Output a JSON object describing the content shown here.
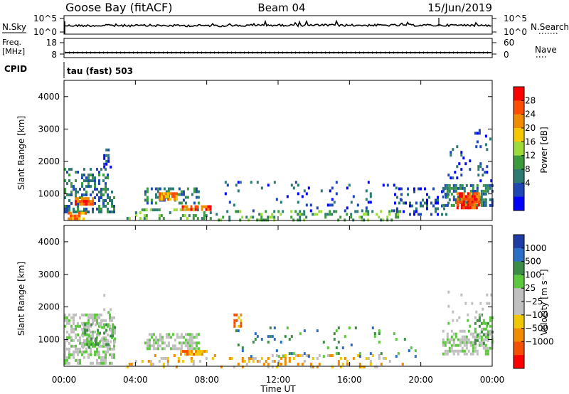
{
  "header": {
    "station": "Goose Bay (fitACF)",
    "beam": "Beam 04",
    "date": "15/Jun/2019"
  },
  "top_panels": {
    "nsky_label": "N.Sky",
    "nsky_ticks": [
      "10^5",
      "10^0"
    ],
    "nsearch_label": "N.Search",
    "nsearch_ticks": [
      "10^5",
      "10^0"
    ],
    "freq_label_1": "Freq.",
    "freq_label_2": "[MHz]",
    "freq_ticks": [
      "18",
      "8"
    ],
    "nave_label": "Nave",
    "nave_ticks": [
      "60",
      "0"
    ],
    "cpid_label": "CPID",
    "cpid_value": "tau (fast) 503"
  },
  "colorbars": {
    "power": {
      "label": "Power [dB]",
      "ticks": [
        "28",
        "24",
        "20",
        "16",
        "12",
        "8",
        "4"
      ],
      "colors": [
        "#ff0000",
        "#ff4d00",
        "#f08c00",
        "#f5c800",
        "#9ddb3a",
        "#3c9a3c",
        "#2d7a72",
        "#1e46b4",
        "#0000ff"
      ]
    },
    "velocity": {
      "label": "Velocity [m s⁻¹]",
      "ticks": [
        "1000",
        "500",
        "100",
        "25",
        "−25",
        "−100",
        "−500",
        "−1000"
      ],
      "colors": [
        "#1f3ca6",
        "#2a6ec8",
        "#3c8c46",
        "#5cc83c",
        "#c0c0c0",
        "#c0c0c0",
        "#f0c800",
        "#f08c00",
        "#f55000",
        "#ff0000"
      ]
    }
  },
  "chart_data": [
    {
      "type": "heatmap",
      "panel": "power",
      "ylabel": "Slant Range [km]",
      "y_ticks": [
        "4000",
        "3000",
        "2000",
        "1000"
      ],
      "ylim": [
        180,
        4500
      ],
      "xlim": [
        0,
        24
      ],
      "x_ticks": [
        "00:00",
        "04:00",
        "08:00",
        "12:00",
        "16:00",
        "20:00",
        "00:00"
      ],
      "colorbar": "power",
      "clusters": [
        {
          "t0": 0.0,
          "t1": 2.5,
          "r0": 1100,
          "r1": 1800,
          "density": 0.35,
          "level": 2
        },
        {
          "t0": 0.0,
          "t1": 2.8,
          "r0": 400,
          "r1": 1100,
          "density": 0.5,
          "level": 2
        },
        {
          "t0": 0.6,
          "t1": 1.6,
          "r0": 650,
          "r1": 900,
          "density": 0.85,
          "level": 7
        },
        {
          "t0": 0.2,
          "t1": 1.2,
          "r0": 250,
          "r1": 450,
          "density": 0.7,
          "level": 6
        },
        {
          "t0": 2.2,
          "t1": 2.6,
          "r0": 1800,
          "r1": 2400,
          "density": 0.35,
          "level": 1
        },
        {
          "t0": 4.5,
          "t1": 7.5,
          "r0": 750,
          "r1": 1200,
          "density": 0.4,
          "level": 2
        },
        {
          "t0": 5.3,
          "t1": 6.3,
          "r0": 850,
          "r1": 1050,
          "density": 0.8,
          "level": 6
        },
        {
          "t0": 6.6,
          "t1": 8.2,
          "r0": 480,
          "r1": 650,
          "density": 0.85,
          "level": 7
        },
        {
          "t0": 3.5,
          "t1": 8.5,
          "r0": 200,
          "r1": 550,
          "density": 0.25,
          "level": 3
        },
        {
          "t0": 8.5,
          "t1": 19.0,
          "r0": 200,
          "r1": 500,
          "density": 0.3,
          "level": 3
        },
        {
          "t0": 9.0,
          "t1": 19.0,
          "r0": 500,
          "r1": 1400,
          "density": 0.08,
          "level": 1
        },
        {
          "t0": 18.5,
          "t1": 21.5,
          "r0": 400,
          "r1": 1200,
          "density": 0.25,
          "level": 1
        },
        {
          "t0": 21.2,
          "t1": 24.0,
          "r0": 600,
          "r1": 1300,
          "density": 0.55,
          "level": 2
        },
        {
          "t0": 22.0,
          "t1": 23.3,
          "r0": 600,
          "r1": 1050,
          "density": 0.85,
          "level": 7
        },
        {
          "t0": 21.5,
          "t1": 24.0,
          "r0": 1400,
          "r1": 2500,
          "density": 0.1,
          "level": 1
        },
        {
          "t0": 23.0,
          "t1": 24.0,
          "r0": 2500,
          "r1": 3000,
          "density": 0.15,
          "level": 1
        }
      ]
    },
    {
      "type": "heatmap",
      "panel": "velocity",
      "ylabel": "Slant Range [km]",
      "xlabel": "Time UT",
      "y_ticks": [
        "4000",
        "3000",
        "2000",
        "1000"
      ],
      "ylim": [
        180,
        4500
      ],
      "xlim": [
        0,
        24
      ],
      "x_ticks": [
        "00:00",
        "04:00",
        "08:00",
        "12:00",
        "16:00",
        "20:00",
        "00:00"
      ],
      "colorbar": "velocity",
      "clusters": [
        {
          "t0": 0.0,
          "t1": 2.8,
          "r0": 300,
          "r1": 1800,
          "density": 0.55,
          "level": 4
        },
        {
          "t0": 1.0,
          "t1": 2.8,
          "r0": 800,
          "r1": 1500,
          "density": 0.45,
          "level": 3
        },
        {
          "t0": 2.2,
          "t1": 2.6,
          "r0": 1800,
          "r1": 2400,
          "density": 0.3,
          "level": 4
        },
        {
          "t0": 4.5,
          "t1": 7.5,
          "r0": 750,
          "r1": 1200,
          "density": 0.55,
          "level": 4
        },
        {
          "t0": 6.5,
          "t1": 8.0,
          "r0": 550,
          "r1": 680,
          "density": 0.8,
          "level": 7
        },
        {
          "t0": 3.5,
          "t1": 19.0,
          "r0": 200,
          "r1": 550,
          "density": 0.2,
          "level": 6
        },
        {
          "t0": 9.5,
          "t1": 10.2,
          "r0": 1400,
          "r1": 1800,
          "density": 0.35,
          "level": 7
        },
        {
          "t0": 9.0,
          "t1": 20.0,
          "r0": 500,
          "r1": 1400,
          "density": 0.07,
          "level": 2
        },
        {
          "t0": 21.2,
          "t1": 24.0,
          "r0": 600,
          "r1": 1300,
          "density": 0.6,
          "level": 4
        },
        {
          "t0": 23.0,
          "t1": 24.0,
          "r0": 900,
          "r1": 1800,
          "density": 0.4,
          "level": 3
        },
        {
          "t0": 21.5,
          "t1": 24.0,
          "r0": 1400,
          "r1": 2500,
          "density": 0.1,
          "level": 4
        }
      ]
    }
  ]
}
